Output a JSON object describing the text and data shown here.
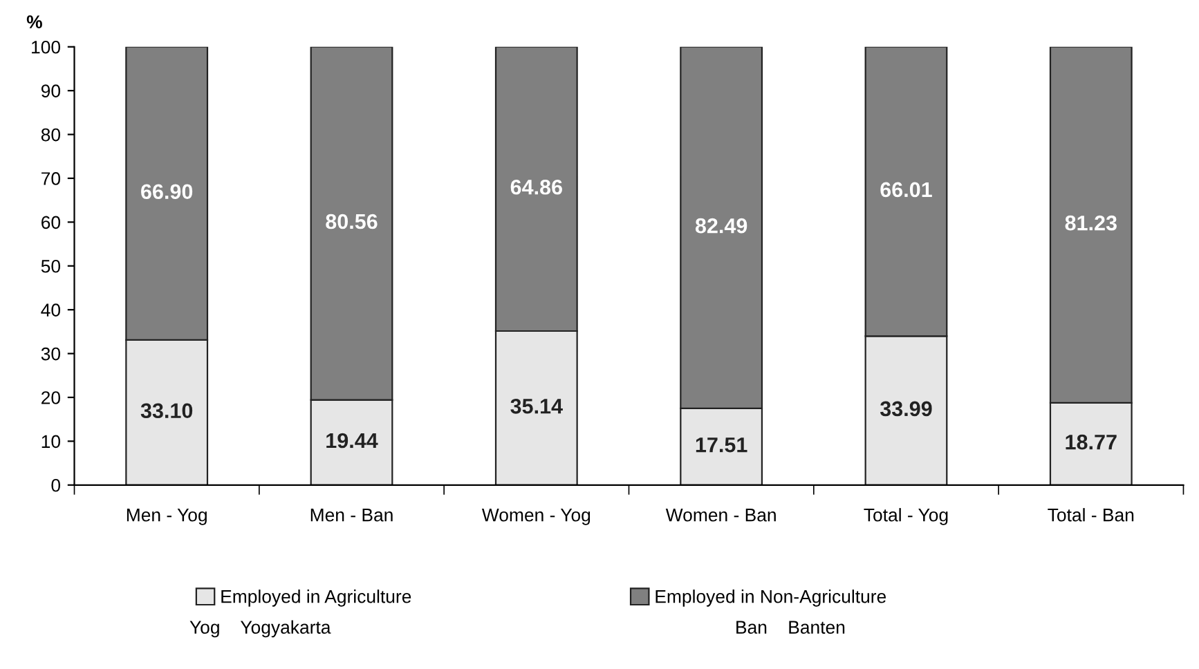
{
  "chart_data": {
    "type": "bar",
    "stacked": true,
    "ylabel": "%",
    "categories": [
      "Men - Yog",
      "Men - Ban",
      "Women - Yog",
      "Women - Ban",
      "Total - Yog",
      "Total - Ban"
    ],
    "series": [
      {
        "name": "Employed in Agriculture",
        "color": "#e6e6e6",
        "values": [
          33.1,
          19.44,
          35.14,
          17.51,
          33.99,
          18.77
        ],
        "value_labels": [
          "33.10",
          "19.44",
          "35.14",
          "17.51",
          "33.99",
          "18.77"
        ]
      },
      {
        "name": "Employed in Non-Agriculture",
        "color": "#808080",
        "values": [
          66.9,
          80.56,
          64.86,
          82.49,
          66.01,
          81.23
        ],
        "value_labels": [
          "66.90",
          "80.56",
          "64.86",
          "82.49",
          "66.01",
          "81.23"
        ]
      }
    ],
    "ylim": [
      0,
      100
    ],
    "yticks": [
      0,
      10,
      20,
      30,
      40,
      50,
      60,
      70,
      80,
      90,
      100
    ],
    "grid": false,
    "legend": "bottom",
    "annotations": [
      "Yog    Yogyakarta",
      "Ban    Banten"
    ]
  }
}
